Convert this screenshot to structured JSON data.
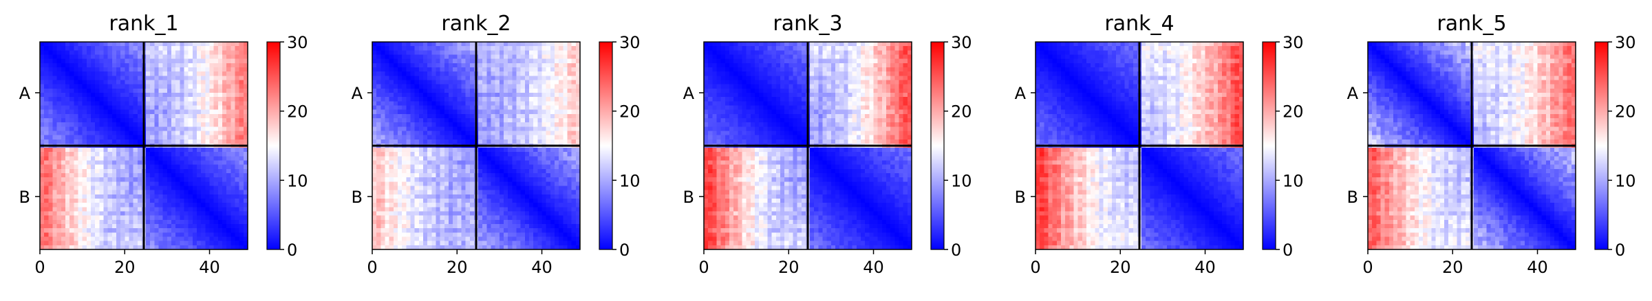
{
  "figure": {
    "colormap": {
      "name": "bwr",
      "low_color": "#0000ff",
      "mid_color": "#ffffff",
      "high_color": "#ff0000",
      "vmin": 0,
      "vmax": 30,
      "ticks": [
        "0",
        "10",
        "20",
        "30"
      ]
    }
  },
  "chart_data": [
    {
      "type": "heatmap",
      "title": "rank_1",
      "grid_size": 49,
      "block_boundary": 24,
      "ytick_labels": [
        "A",
        "B"
      ],
      "xtick_labels": [
        "0",
        "20",
        "40"
      ],
      "x_ticks": [
        0,
        20,
        40
      ],
      "colorbar_range": [
        0,
        30
      ],
      "block_pattern": {
        "within_block_range": [
          0,
          10
        ],
        "between_block_range": [
          10,
          25
        ],
        "between_block_edge_trend": "redder toward far columns"
      }
    },
    {
      "type": "heatmap",
      "title": "rank_2",
      "grid_size": 49,
      "block_boundary": 24,
      "ytick_labels": [
        "A",
        "B"
      ],
      "xtick_labels": [
        "0",
        "20",
        "40"
      ],
      "x_ticks": [
        0,
        20,
        40
      ],
      "colorbar_range": [
        0,
        30
      ],
      "block_pattern": {
        "within_block_range": [
          0,
          12
        ],
        "between_block_range": [
          10,
          20
        ],
        "between_block_edge_trend": "mostly pale"
      }
    },
    {
      "type": "heatmap",
      "title": "rank_3",
      "grid_size": 49,
      "block_boundary": 24,
      "ytick_labels": [
        "A",
        "B"
      ],
      "xtick_labels": [
        "0",
        "20",
        "40"
      ],
      "x_ticks": [
        0,
        20,
        40
      ],
      "colorbar_range": [
        0,
        30
      ],
      "block_pattern": {
        "within_block_range": [
          0,
          8
        ],
        "between_block_range": [
          10,
          28
        ],
        "between_block_edge_trend": "strongly red toward far columns"
      }
    },
    {
      "type": "heatmap",
      "title": "rank_4",
      "grid_size": 49,
      "block_boundary": 24,
      "ytick_labels": [
        "A",
        "B"
      ],
      "xtick_labels": [
        "0",
        "20",
        "40"
      ],
      "x_ticks": [
        0,
        20,
        40
      ],
      "colorbar_range": [
        0,
        30
      ],
      "block_pattern": {
        "within_block_range": [
          0,
          8
        ],
        "between_block_range": [
          12,
          28
        ],
        "between_block_edge_trend": "red on both edges"
      }
    },
    {
      "type": "heatmap",
      "title": "rank_5",
      "grid_size": 49,
      "block_boundary": 24,
      "ytick_labels": [
        "A",
        "B"
      ],
      "xtick_labels": [
        "0",
        "20",
        "40"
      ],
      "x_ticks": [
        0,
        20,
        40
      ],
      "colorbar_range": [
        0,
        30
      ],
      "block_pattern": {
        "within_block_range": [
          0,
          14
        ],
        "between_block_range": [
          12,
          26
        ],
        "between_block_edge_trend": "redder toward far columns"
      }
    }
  ]
}
